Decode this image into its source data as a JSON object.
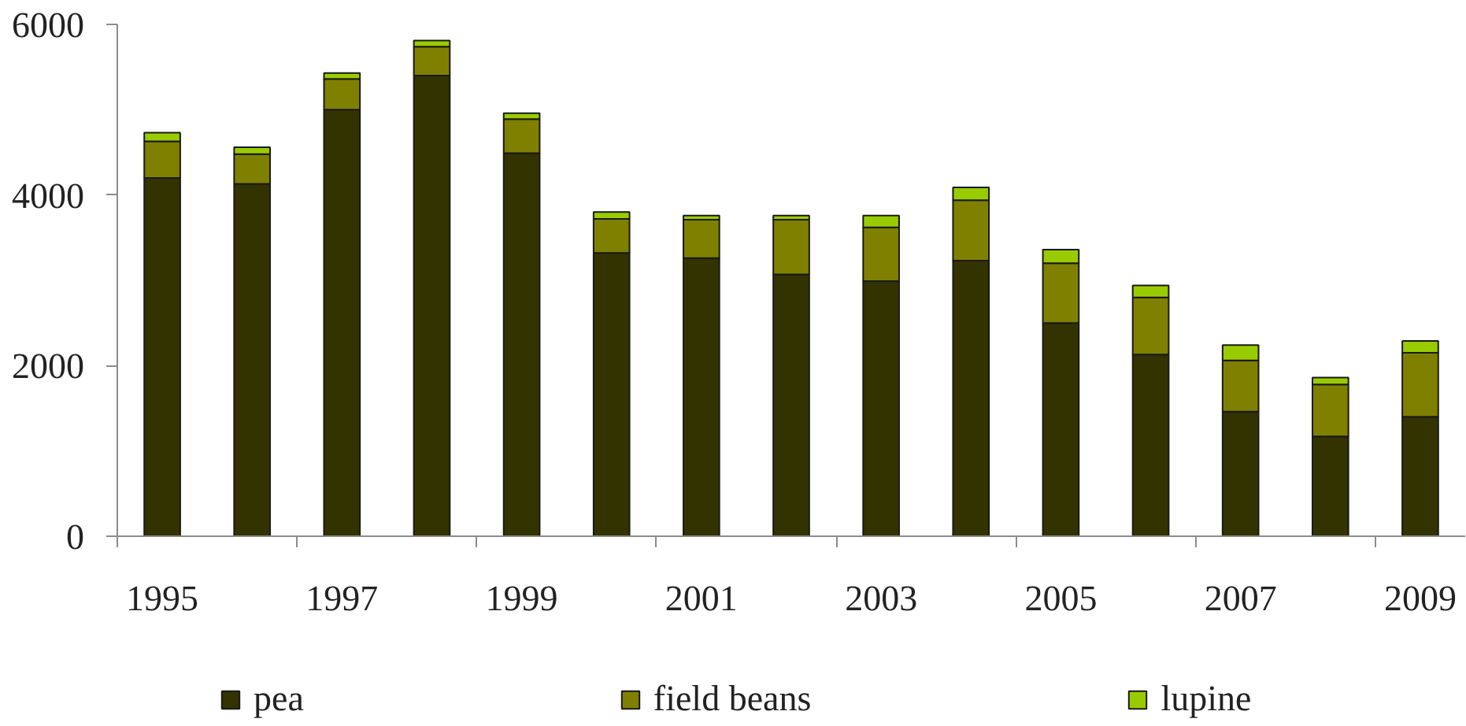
{
  "chart_data": {
    "type": "bar",
    "stacked": true,
    "categories": [
      "1995",
      null,
      "1997",
      null,
      "1999",
      null,
      "2001",
      null,
      "2003",
      null,
      "2005",
      null,
      "2007",
      null,
      "2009"
    ],
    "series": [
      {
        "name": "pea",
        "color": "#333300",
        "values": [
          4200,
          4130,
          5000,
          5400,
          4490,
          3320,
          3260,
          3070,
          2990,
          3230,
          2500,
          2130,
          1460,
          1170,
          1400
        ]
      },
      {
        "name": "field beans",
        "color": "#808000",
        "values": [
          430,
          350,
          360,
          340,
          400,
          400,
          450,
          640,
          630,
          710,
          700,
          670,
          600,
          610,
          750
        ]
      },
      {
        "name": "lupine",
        "color": "#99cc00",
        "values": [
          100,
          80,
          70,
          70,
          70,
          80,
          50,
          50,
          140,
          150,
          160,
          140,
          180,
          80,
          140
        ]
      }
    ],
    "ylim": [
      0,
      6000
    ],
    "yticks": [
      0,
      2000,
      4000,
      6000
    ],
    "grid": false,
    "legend": "bottom"
  }
}
